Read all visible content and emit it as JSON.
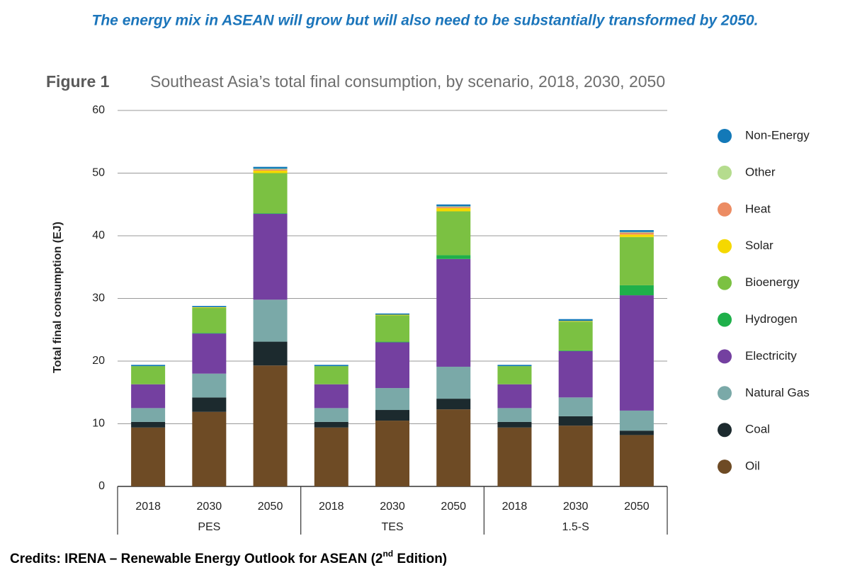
{
  "header": {
    "headline": "The energy mix in ASEAN will grow but will also need to be substantially transformed by 2050.",
    "credits": [
      "Credits: IRENA – Renewable Energy Outlook for ASEAN (2",
      "nd",
      " Edition)"
    ]
  },
  "chart_data": {
    "type": "stacked-bar",
    "figure_label": "Figure 1",
    "title": "Southeast Asia’s total final consumption, by scenario, 2018, 2030, 2050",
    "y_label": "Total final consumption (EJ)",
    "categories": [
      "2018",
      "2030",
      "2050",
      "2018",
      "2030",
      "2050",
      "2018",
      "2030",
      "2050"
    ],
    "groups": [
      "PES",
      "TES",
      "1.5-S"
    ],
    "ylim": [
      0,
      60
    ],
    "yticks": [
      0,
      10,
      20,
      30,
      40,
      50,
      60
    ],
    "grid": true,
    "legend": "right",
    "series": [
      {
        "name": "Oil",
        "color": "#6e4b25",
        "values": [
          9.4,
          11.9,
          19.3,
          9.4,
          10.5,
          12.3,
          9.4,
          9.7,
          8.2
        ]
      },
      {
        "name": "Coal",
        "color": "#1c2a2e",
        "values": [
          0.9,
          2.3,
          3.8,
          0.9,
          1.7,
          1.7,
          0.9,
          1.5,
          0.7
        ]
      },
      {
        "name": "Natural Gas",
        "color": "#7aa9a8",
        "values": [
          2.2,
          3.8,
          6.7,
          2.2,
          3.5,
          5.1,
          2.2,
          3.0,
          3.2
        ]
      },
      {
        "name": "Electricity",
        "color": "#7440a0",
        "values": [
          3.8,
          6.4,
          13.7,
          3.8,
          7.3,
          17.2,
          3.8,
          7.4,
          18.4
        ]
      },
      {
        "name": "Hydrogen",
        "color": "#1fb04a",
        "values": [
          0,
          0.1,
          0.1,
          0,
          0.1,
          0.6,
          0,
          0.1,
          1.6
        ]
      },
      {
        "name": "Bioenergy",
        "color": "#7bc142",
        "values": [
          2.9,
          4.0,
          6.4,
          2.9,
          4.2,
          7.0,
          2.9,
          4.6,
          7.7
        ]
      },
      {
        "name": "Solar",
        "color": "#f5d800",
        "values": [
          0,
          0.1,
          0.4,
          0,
          0.1,
          0.5,
          0,
          0.1,
          0.4
        ]
      },
      {
        "name": "Heat",
        "color": "#ec8c63",
        "values": [
          0,
          0,
          0.2,
          0,
          0,
          0.2,
          0,
          0,
          0.3
        ]
      },
      {
        "name": "Other",
        "color": "#b5dc8e",
        "values": [
          0,
          0,
          0.1,
          0,
          0,
          0.1,
          0,
          0,
          0.1
        ]
      },
      {
        "name": "Non-Energy",
        "color": "#1379b8",
        "values": [
          0.2,
          0.2,
          0.3,
          0.2,
          0.2,
          0.3,
          0.2,
          0.3,
          0.3
        ]
      }
    ]
  }
}
